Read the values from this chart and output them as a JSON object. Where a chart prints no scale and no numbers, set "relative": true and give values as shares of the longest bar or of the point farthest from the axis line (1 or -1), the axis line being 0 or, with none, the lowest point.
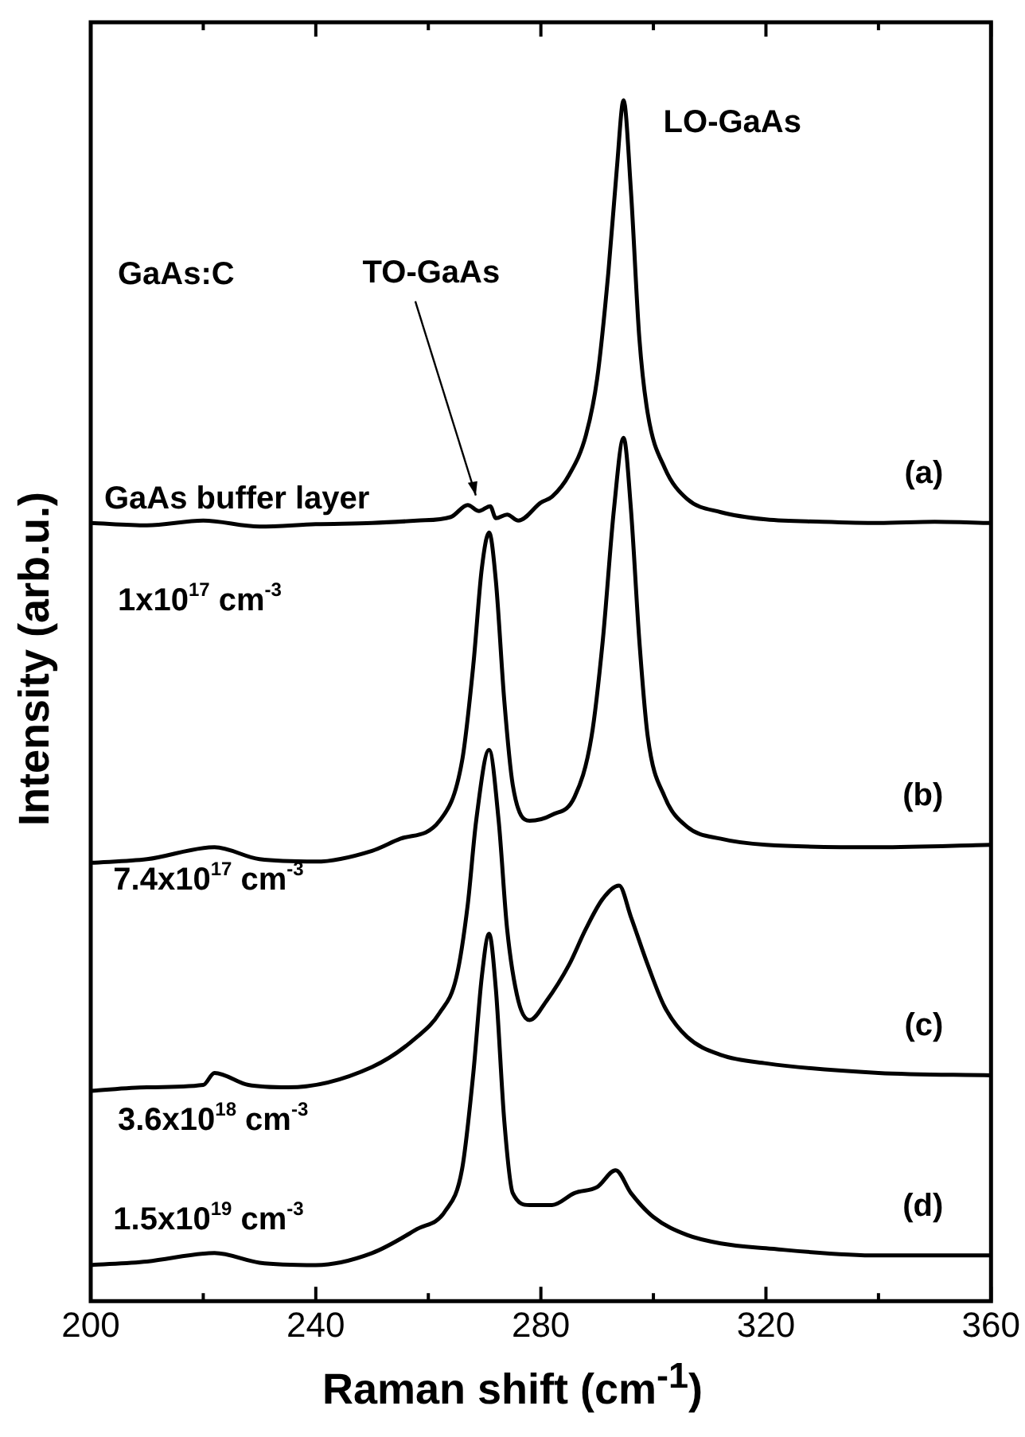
{
  "chart_data": {
    "type": "line",
    "relative": true,
    "xlabel": "Raman shift (cm$^{-1}$)",
    "ylabel": "Intensity (arb.u.)",
    "xlim": [
      200,
      360
    ],
    "xticks": [
      200,
      {
        "value": 220,
        "label": null
      },
      240,
      {
        "value": 260,
        "label": null
      },
      280,
      {
        "value": 300,
        "label": null
      },
      320,
      {
        "value": 340,
        "label": null
      },
      360
    ],
    "grid": false,
    "legend": false,
    "marker": "none",
    "line_style": "solid",
    "annotations": [
      "GaAs:C",
      "GaAs buffer layer",
      "1x10$^{17}$ cm$^{-3}$",
      "7.4x10$^{17}$ cm$^{-3}$",
      "3.6x10$^{18}$ cm$^{-3}$",
      "1.5x10$^{19}$ cm$^{-3}$",
      {
        "text": "LO-GaAs",
        "x": 294.7,
        "y": 1.0
      },
      {
        "text": "TO-GaAs",
        "x": 269,
        "y": 0.663
      }
    ],
    "series": [
      {
        "name": "(a)",
        "color": "#000000",
        "x": [
          200,
          210,
          220,
          230,
          240,
          250,
          258,
          264,
          267,
          269,
          271,
          272,
          274,
          276,
          280,
          282,
          285,
          288,
          290,
          292,
          293.5,
          294.7,
          296,
          297.5,
          299,
          302,
          306,
          312,
          320,
          330,
          340,
          350,
          360
        ],
        "values": [
          0.648,
          0.646,
          0.65,
          0.645,
          0.647,
          0.648,
          0.65,
          0.653,
          0.663,
          0.658,
          0.662,
          0.652,
          0.655,
          0.65,
          0.665,
          0.67,
          0.688,
          0.721,
          0.768,
          0.857,
          0.943,
          1.0,
          0.925,
          0.802,
          0.739,
          0.694,
          0.668,
          0.657,
          0.651,
          0.649,
          0.648,
          0.649,
          0.648
        ]
      },
      {
        "name": "(b)",
        "color": "#000000",
        "x": [
          200,
          210,
          222,
          230,
          240,
          250,
          255,
          262,
          266,
          268,
          269.5,
          270.8,
          272,
          273.5,
          275,
          278,
          282,
          286,
          289,
          291,
          293,
          294.7,
          296,
          297.5,
          299,
          302,
          306,
          312,
          320,
          340,
          360
        ],
        "values": [
          0.365,
          0.368,
          0.378,
          0.368,
          0.366,
          0.375,
          0.385,
          0.4,
          0.45,
          0.53,
          0.61,
          0.64,
          0.6,
          0.5,
          0.43,
          0.4,
          0.405,
          0.42,
          0.47,
          0.55,
          0.66,
          0.719,
          0.66,
          0.55,
          0.47,
          0.42,
          0.395,
          0.385,
          0.38,
          0.378,
          0.38
        ]
      },
      {
        "name": "(c)",
        "color": "#000000",
        "x": [
          200,
          210,
          220,
          222,
          228,
          235,
          250,
          258,
          262,
          265,
          267,
          268.5,
          270.8,
          272.5,
          274,
          276,
          278,
          281,
          285,
          288,
          291,
          293.9,
          296,
          299,
          302,
          306,
          312,
          320,
          340,
          360
        ],
        "values": [
          0.175,
          0.178,
          0.18,
          0.19,
          0.18,
          0.178,
          0.195,
          0.22,
          0.24,
          0.27,
          0.33,
          0.4,
          0.459,
          0.4,
          0.31,
          0.25,
          0.234,
          0.25,
          0.28,
          0.31,
          0.335,
          0.346,
          0.32,
          0.28,
          0.245,
          0.22,
          0.205,
          0.198,
          0.19,
          0.188
        ]
      },
      {
        "name": "(d)",
        "color": "#000000",
        "x": [
          200,
          210,
          222,
          230,
          240,
          250,
          258,
          263,
          266,
          268,
          269.5,
          270.8,
          272,
          273.5,
          275,
          278,
          282,
          286,
          290,
          293.3,
          296,
          300,
          306,
          312,
          320,
          340,
          360
        ],
        "values": [
          0.03,
          0.033,
          0.04,
          0.032,
          0.03,
          0.04,
          0.06,
          0.075,
          0.11,
          0.19,
          0.27,
          0.306,
          0.26,
          0.15,
          0.09,
          0.08,
          0.08,
          0.09,
          0.095,
          0.109,
          0.09,
          0.07,
          0.055,
          0.048,
          0.044,
          0.038,
          0.038
        ]
      }
    ]
  }
}
